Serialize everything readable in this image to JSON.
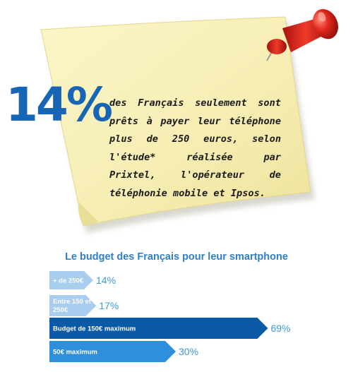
{
  "headline": {
    "percent": "14%",
    "text": "des Français seulement sont prêts à payer leur téléphone plus de 250 euros, selon l'étude* réalisée par Prixtel, l'opérateur de téléphonie mobile et Ipsos."
  },
  "colors": {
    "note": "#f8f0b8",
    "accent": "#1766b5",
    "light_bar": "#a9cdef",
    "mid_bar": "#2e8fda",
    "dark_bar": "#0b5aa8",
    "value_text": "#3a9ad9",
    "pin": "#e0221b"
  },
  "chart_data": {
    "type": "bar",
    "orientation": "horizontal",
    "title": "Le budget des Français pour leur smartphone",
    "categories": [
      "+ de 250€",
      "Entre 150 et 250€",
      "Budget de 150€ maximum",
      "50€ maximum"
    ],
    "values": [
      14,
      17,
      69,
      30
    ],
    "value_labels": [
      "14%",
      "17%",
      "69%",
      "30%"
    ],
    "xlim": [
      0,
      100
    ],
    "unit": "%",
    "grid": false,
    "legend": "none"
  }
}
